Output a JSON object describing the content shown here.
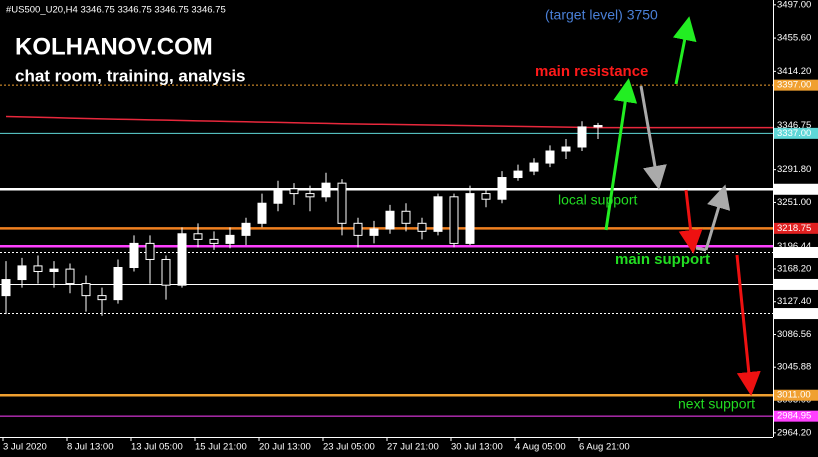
{
  "chart_data": {
    "type": "candlestick",
    "title": "#US500_U20,H4  3346.75 3346.75 3346.75 3346.75",
    "brand": "KOLHANOV.COM",
    "subtitle": "chat room, training, analysis",
    "categories": [
      "3 Jul 2020",
      null,
      null,
      null,
      "8 Jul 13:00",
      null,
      null,
      null,
      "13 Jul 05:00",
      null,
      null,
      null,
      "15 Jul 21:00",
      null,
      null,
      null,
      "20 Jul 13:00",
      null,
      null,
      null,
      "23 Jul 05:00",
      null,
      null,
      null,
      "27 Jul 21:00",
      null,
      null,
      null,
      "30 Jul 13:00",
      null,
      null,
      null,
      "4 Aug 05:00",
      null,
      null,
      null,
      "6 Aug 21:00",
      null
    ],
    "open": [
      3135,
      3155,
      3172,
      3165,
      3168,
      3150,
      3135,
      3130,
      3170,
      3200,
      3180,
      3148,
      3212,
      3205,
      3200,
      3210,
      3225,
      3250,
      3268,
      3262,
      3258,
      3275,
      3225,
      3210,
      3218,
      3240,
      3225,
      3215,
      3258,
      3200,
      3262,
      3255,
      3282,
      3290,
      3300,
      3315,
      3320,
      3345
    ],
    "high": [
      3178,
      3182,
      3185,
      3178,
      3175,
      3160,
      3145,
      3180,
      3210,
      3210,
      3185,
      3220,
      3225,
      3215,
      3220,
      3232,
      3262,
      3278,
      3275,
      3272,
      3288,
      3280,
      3232,
      3228,
      3248,
      3250,
      3232,
      3262,
      3262,
      3272,
      3268,
      3290,
      3298,
      3306,
      3322,
      3330,
      3352,
      3350
    ],
    "low": [
      3112,
      3145,
      3150,
      3145,
      3138,
      3115,
      3110,
      3125,
      3165,
      3150,
      3130,
      3145,
      3195,
      3192,
      3194,
      3198,
      3220,
      3240,
      3248,
      3240,
      3252,
      3210,
      3195,
      3200,
      3212,
      3215,
      3205,
      3210,
      3195,
      3198,
      3245,
      3250,
      3278,
      3285,
      3295,
      3305,
      3315,
      3330
    ],
    "close": [
      3155,
      3172,
      3165,
      3168,
      3150,
      3135,
      3130,
      3170,
      3200,
      3180,
      3148,
      3212,
      3205,
      3200,
      3210,
      3225,
      3250,
      3268,
      3262,
      3258,
      3275,
      3225,
      3210,
      3218,
      3240,
      3225,
      3215,
      3258,
      3200,
      3262,
      3255,
      3282,
      3290,
      3300,
      3315,
      3320,
      3345,
      3346.75
    ],
    "moving_average": {
      "color": "#e8283c",
      "values": [
        3358,
        3357.5,
        3357,
        3356.5,
        3356,
        3355.5,
        3355,
        3354.6,
        3354.2,
        3353.8,
        3353.4,
        3353,
        3352.6,
        3352.2,
        3351.8,
        3351.4,
        3351,
        3350.6,
        3350.2,
        3349.8,
        3349.4,
        3349,
        3348.7,
        3348.4,
        3348.1,
        3347.8,
        3347.5,
        3347.2,
        3346.9,
        3346.6,
        3346.3,
        3346,
        3345.7,
        3345.4,
        3345.1,
        3344.8,
        3344.5,
        3344.2
      ]
    },
    "ylim": [
      2959,
      3503
    ],
    "yticks": [
      {
        "value": 3497,
        "label": "3497.00"
      },
      {
        "value": 3455.6,
        "label": "3455.60"
      },
      {
        "value": 3414.2,
        "label": "3414.20"
      },
      {
        "value": 3291.8,
        "label": "3291.80"
      },
      {
        "value": 3251,
        "label": "3251.00"
      },
      {
        "value": 3168.2,
        "label": "3168.20"
      },
      {
        "value": 3127.4,
        "label": "3127.40"
      },
      {
        "value": 3086.56,
        "label": "3086.56"
      },
      {
        "value": 3045.88,
        "label": "3045.88"
      },
      {
        "value": 3005,
        "label": "3005.00"
      },
      {
        "value": 2964.2,
        "label": "2964.20"
      }
    ],
    "levels": [
      {
        "value": 3397,
        "label": "3397.00",
        "color": "#f0a030",
        "style": "dotted",
        "box": "#f0a030"
      },
      {
        "value": 3346.75,
        "label": "3346.75",
        "color": "#ffffff",
        "style": "none",
        "box": "#000000"
      },
      {
        "value": 3337,
        "label": "3337.00",
        "color": "#5fd7d7",
        "style": "solid",
        "box": "#5fd7d7"
      },
      {
        "value": 3267.39,
        "label": "3267.39",
        "color": "#ffffff",
        "style": "thick",
        "box": "#ffffff"
      },
      {
        "value": 3218.75,
        "label": "3218.75",
        "color": "#f08020",
        "style": "thick",
        "box": "#e02020"
      },
      {
        "value": 3196.44,
        "label": "3196.44",
        "color": "#ff40ff",
        "style": "thick",
        "box": "#000000"
      },
      {
        "value": 3188.69,
        "label": "3188.69",
        "color": "#ffffff",
        "style": "dotted",
        "box": "#ffffff"
      },
      {
        "value": 3148.9,
        "label": "3148.90",
        "color": "#ffffff",
        "style": "solid",
        "box": "#ffffff"
      },
      {
        "value": 3112.67,
        "label": "3112.67",
        "color": "#ffffff",
        "style": "dotted",
        "box": "#ffffff"
      },
      {
        "value": 3011,
        "label": "3011.00",
        "color": "#f0a030",
        "style": "thick",
        "box": "#f0a030"
      },
      {
        "value": 2984.95,
        "label": "2984.95",
        "color": "#ff40ff",
        "style": "solid",
        "box": "#ff40ff"
      }
    ],
    "annotations": [
      {
        "text": "(target level) 3750",
        "color": "#4a80d8"
      },
      {
        "text": "main resistance",
        "color": "#ff1a1a"
      },
      {
        "text": "local support",
        "color": "#22dd22"
      },
      {
        "text": "main support",
        "color": "#22dd22"
      },
      {
        "text": "next support",
        "color": "#22dd22"
      }
    ]
  }
}
